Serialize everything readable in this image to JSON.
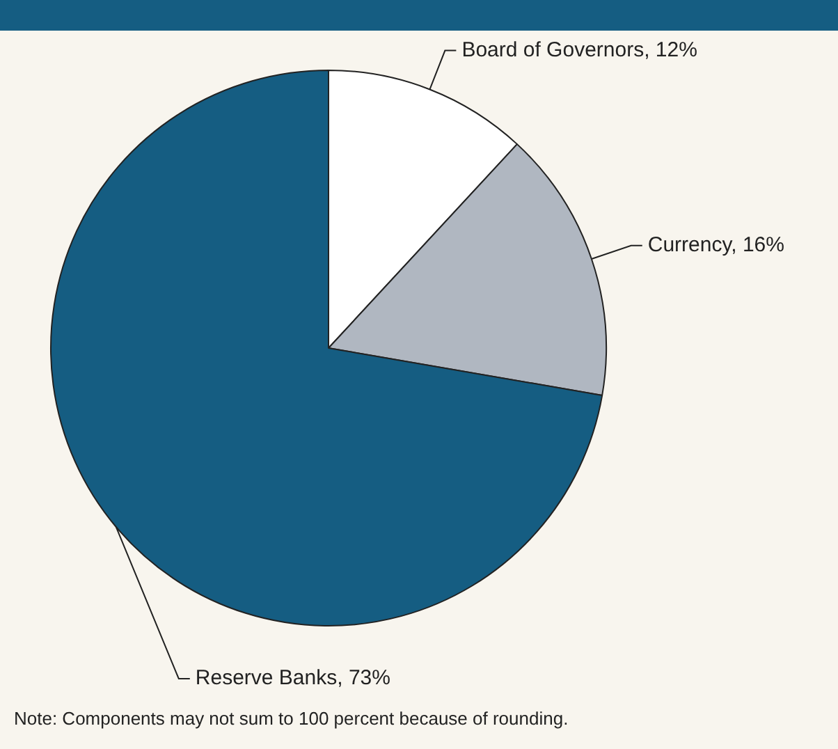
{
  "chart_data": {
    "type": "pie",
    "categories": [
      "Board of Governors, 12%",
      "Currency, 16%",
      "Reserve Banks, 73%"
    ],
    "values": [
      12,
      16,
      73
    ],
    "colors": [
      "#ffffff",
      "#b0b7c1",
      "#155d82"
    ],
    "annotations": [
      "Note: Components may not sum to 100 percent because of rounding."
    ]
  }
}
